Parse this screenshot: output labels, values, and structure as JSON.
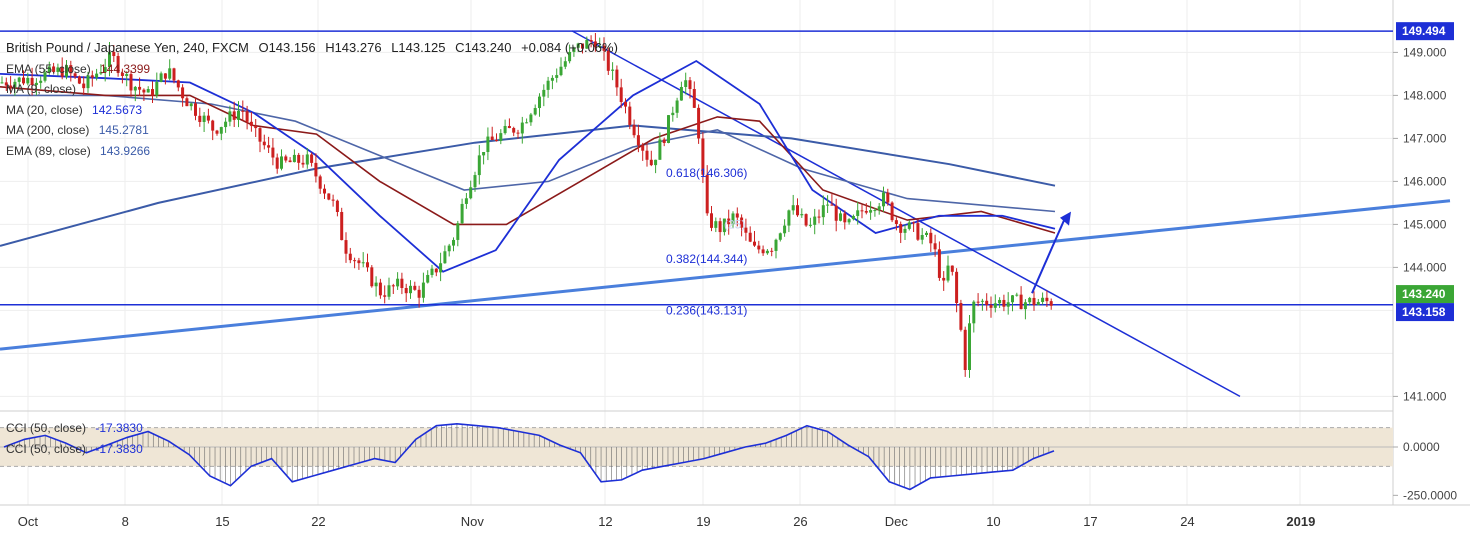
{
  "header": {
    "symbol": "British Pound / Japanese Yen, 240, FXCM",
    "open": "O143.156",
    "high": "H143.276",
    "low": "L143.125",
    "close": "C143.240",
    "change": "+0.084 (+0.06%)"
  },
  "indicators": [
    {
      "label": "EMA (55, close)",
      "value": "144.3399",
      "color": "#8b1a1a"
    },
    {
      "label": "MA (9, close)",
      "value": "",
      "color": "#1d2fd6"
    },
    {
      "label": "MA (20, close)",
      "value": "142.5673",
      "color": "#1d2fd6"
    },
    {
      "label": "MA (200, close)",
      "value": "145.2781",
      "color": "#3b5ba8"
    },
    {
      "label": "EMA (89, close)",
      "value": "143.9266",
      "color": "#3b5ba8"
    }
  ],
  "oscillator_legend": [
    {
      "label": "CCI (50, close)",
      "value": "-17.3830"
    },
    {
      "label": "CCI (50, close)",
      "value": "-17.3830"
    }
  ],
  "price_axis": {
    "ticks": [
      "149.000",
      "148.000",
      "147.000",
      "146.000",
      "145.000",
      "144.000",
      "141.000"
    ],
    "tags": [
      {
        "label": "149.494",
        "bg": "#1d2fd6"
      },
      {
        "label": "143.240",
        "bg": "#3aa635"
      },
      {
        "label": "143.158",
        "bg": "#1d2fd6"
      }
    ]
  },
  "osc_axis": {
    "ticks": [
      "0.0000",
      "-250.0000"
    ]
  },
  "time_axis": {
    "labels": [
      "Oct",
      "8",
      "15",
      "22",
      "Nov",
      "12",
      "19",
      "26",
      "Dec",
      "10",
      "17",
      "24",
      "2019"
    ]
  },
  "annotations": {
    "fib_618": "0.618(146.306)",
    "fib_382": "0.382(144.344)",
    "fib_236": "0.236(143.131)",
    "faint": "(25)"
  },
  "colors": {
    "up": "#3aa635",
    "down": "#cc1f1f",
    "trend": "#1d2fd6",
    "support": "#4a7fdc"
  },
  "chart_data": {
    "type": "candlestick",
    "title": "British Pound / Japanese Yen, 240, FXCM",
    "x": [
      "Oct",
      "8",
      "15",
      "22",
      "Nov",
      "12",
      "19",
      "26",
      "Dec",
      "10",
      "17",
      "24",
      "2019"
    ],
    "ylim": [
      140.8,
      149.8
    ],
    "horizontal_levels": [
      149.494,
      143.131
    ],
    "last_price": 143.24,
    "close_path": [
      [
        0,
        148.3
      ],
      [
        0.035,
        148.4
      ],
      [
        0.07,
        148.6
      ],
      [
        0.09,
        148.2
      ],
      [
        0.12,
        148.9
      ],
      [
        0.14,
        148.3
      ],
      [
        0.16,
        148.0
      ],
      [
        0.18,
        148.6
      ],
      [
        0.2,
        147.9
      ],
      [
        0.23,
        147.2
      ],
      [
        0.26,
        147.7
      ],
      [
        0.27,
        147.2
      ],
      [
        0.3,
        146.4
      ],
      [
        0.33,
        146.5
      ],
      [
        0.36,
        145.4
      ],
      [
        0.37,
        144.5
      ],
      [
        0.39,
        144.0
      ],
      [
        0.41,
        143.4
      ],
      [
        0.43,
        143.6
      ],
      [
        0.45,
        143.4
      ],
      [
        0.47,
        144.0
      ],
      [
        0.49,
        144.8
      ],
      [
        0.5,
        145.7
      ],
      [
        0.52,
        146.8
      ],
      [
        0.54,
        147.1
      ],
      [
        0.56,
        147.3
      ],
      [
        0.58,
        148.0
      ],
      [
        0.6,
        148.6
      ],
      [
        0.62,
        149.1
      ],
      [
        0.64,
        149.3
      ],
      [
        0.66,
        148.4
      ],
      [
        0.68,
        147.3
      ],
      [
        0.7,
        146.4
      ],
      [
        0.715,
        147.1
      ],
      [
        0.735,
        148.5
      ],
      [
        0.75,
        147.4
      ],
      [
        0.76,
        145.1
      ],
      [
        0.775,
        144.9
      ],
      [
        0.79,
        145.2
      ],
      [
        0.81,
        144.4
      ],
      [
        0.83,
        144.5
      ],
      [
        0.85,
        145.4
      ],
      [
        0.87,
        144.9
      ],
      [
        0.89,
        145.5
      ],
      [
        0.91,
        144.9
      ],
      [
        0.93,
        145.4
      ],
      [
        0.95,
        145.6
      ],
      [
        0.965,
        145.0
      ],
      [
        0.98,
        144.9
      ],
      [
        1.0,
        144.6
      ]
    ],
    "close_path2": [
      [
        0,
        144.6
      ],
      [
        0.06,
        144.2
      ],
      [
        0.1,
        143.4
      ],
      [
        0.14,
        144.0
      ],
      [
        0.18,
        143.8
      ],
      [
        0.22,
        143.0
      ],
      [
        0.26,
        142.3
      ],
      [
        0.28,
        141.7
      ],
      [
        0.3,
        142.2
      ],
      [
        0.33,
        143.0
      ],
      [
        0.36,
        143.2
      ]
    ],
    "ema55": [
      [
        0,
        148.2
      ],
      [
        0.1,
        148.0
      ],
      [
        0.18,
        148.0
      ],
      [
        0.24,
        147.3
      ],
      [
        0.3,
        147.1
      ],
      [
        0.36,
        146.0
      ],
      [
        0.43,
        145.0
      ],
      [
        0.48,
        145.0
      ],
      [
        0.55,
        146.0
      ],
      [
        0.62,
        147.0
      ],
      [
        0.68,
        147.5
      ],
      [
        0.72,
        147.4
      ],
      [
        0.78,
        145.8
      ],
      [
        0.86,
        145.1
      ],
      [
        0.93,
        145.3
      ],
      [
        1.0,
        144.8
      ]
    ],
    "ma20": [
      [
        0,
        148.5
      ],
      [
        0.1,
        148.4
      ],
      [
        0.18,
        148.3
      ],
      [
        0.24,
        147.6
      ],
      [
        0.3,
        146.6
      ],
      [
        0.36,
        145.2
      ],
      [
        0.42,
        143.9
      ],
      [
        0.47,
        144.4
      ],
      [
        0.53,
        146.5
      ],
      [
        0.6,
        148.0
      ],
      [
        0.66,
        148.8
      ],
      [
        0.72,
        147.8
      ],
      [
        0.77,
        145.8
      ],
      [
        0.83,
        144.8
      ],
      [
        0.89,
        145.2
      ],
      [
        0.95,
        145.2
      ],
      [
        1.0,
        144.9
      ]
    ],
    "ema89": [
      [
        0,
        148.0
      ],
      [
        0.1,
        148.0
      ],
      [
        0.2,
        147.8
      ],
      [
        0.28,
        147.4
      ],
      [
        0.36,
        146.6
      ],
      [
        0.44,
        145.8
      ],
      [
        0.52,
        146.0
      ],
      [
        0.6,
        146.8
      ],
      [
        0.68,
        147.2
      ],
      [
        0.76,
        146.3
      ],
      [
        0.86,
        145.6
      ],
      [
        1.0,
        145.3
      ]
    ],
    "ma200": [
      [
        0,
        144.5
      ],
      [
        0.15,
        145.5
      ],
      [
        0.3,
        146.3
      ],
      [
        0.45,
        146.9
      ],
      [
        0.6,
        147.3
      ],
      [
        0.75,
        147.0
      ],
      [
        0.9,
        146.4
      ],
      [
        1.0,
        145.9
      ]
    ],
    "cci": [
      0,
      40,
      60,
      20,
      -30,
      10,
      50,
      80,
      30,
      -40,
      -150,
      -200,
      -100,
      -60,
      -180,
      -150,
      -120,
      -90,
      -60,
      -80,
      40,
      110,
      120,
      110,
      100,
      80,
      60,
      10,
      -30,
      -180,
      -170,
      -120,
      -100,
      -80,
      -60,
      -30,
      0,
      20,
      60,
      110,
      80,
      10,
      -50,
      -180,
      -220,
      -160,
      -150,
      -140,
      -130,
      -120,
      -60,
      -20
    ]
  }
}
